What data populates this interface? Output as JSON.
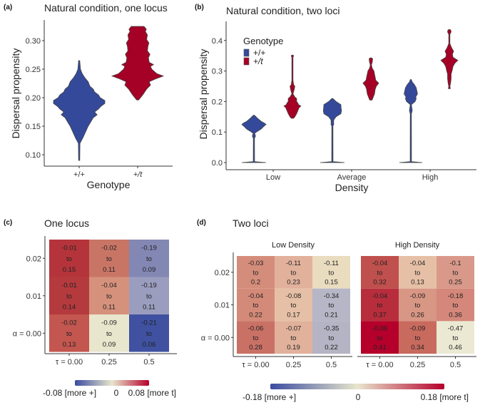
{
  "colors": {
    "wild": "#34499a",
    "t": "#a50026",
    "outline": "#444444",
    "axis": "#333333",
    "cmap_low": "#3b4ca0",
    "cmap_mid": "#e8e6cc",
    "cmap_high": "#b5002b"
  },
  "chart_data": [
    {
      "id": "a",
      "panel_label": "(a)",
      "type": "violin",
      "title": "Natural condition, one locus",
      "xlabel": "Genotype",
      "ylabel": "Dispersal propensity",
      "ylim": [
        0.085,
        0.335
      ],
      "yticks": [
        "0.10",
        "0.15",
        "0.20",
        "0.25",
        "0.30"
      ],
      "ytick_values": [
        0.1,
        0.15,
        0.2,
        0.25,
        0.3
      ],
      "categories": [
        "+/+",
        "+/t"
      ],
      "series": [
        {
          "name": "+/+",
          "color_key": "wild",
          "min": 0.09,
          "max": 0.265,
          "mode": 0.195,
          "profile": [
            [
              0.09,
              0.02
            ],
            [
              0.12,
              0.03
            ],
            [
              0.13,
              0.15
            ],
            [
              0.15,
              0.35
            ],
            [
              0.165,
              0.55
            ],
            [
              0.17,
              0.7
            ],
            [
              0.175,
              0.6
            ],
            [
              0.18,
              0.75
            ],
            [
              0.185,
              0.85
            ],
            [
              0.19,
              1.0
            ],
            [
              0.195,
              1.0
            ],
            [
              0.2,
              0.82
            ],
            [
              0.205,
              0.75
            ],
            [
              0.21,
              0.6
            ],
            [
              0.215,
              0.55
            ],
            [
              0.22,
              0.42
            ],
            [
              0.228,
              0.35
            ],
            [
              0.235,
              0.22
            ],
            [
              0.242,
              0.12
            ],
            [
              0.25,
              0.05
            ],
            [
              0.265,
              0.02
            ]
          ]
        },
        {
          "name": "+/t",
          "color_key": "t",
          "min": 0.196,
          "max": 0.325,
          "mode": 0.238,
          "profile": [
            [
              0.196,
              0.04
            ],
            [
              0.205,
              0.2
            ],
            [
              0.215,
              0.35
            ],
            [
              0.222,
              0.5
            ],
            [
              0.228,
              0.45
            ],
            [
              0.233,
              0.7
            ],
            [
              0.238,
              1.0
            ],
            [
              0.242,
              0.75
            ],
            [
              0.25,
              0.55
            ],
            [
              0.255,
              0.5
            ],
            [
              0.258,
              0.62
            ],
            [
              0.262,
              0.45
            ],
            [
              0.27,
              0.42
            ],
            [
              0.276,
              0.48
            ],
            [
              0.282,
              0.38
            ],
            [
              0.29,
              0.4
            ],
            [
              0.296,
              0.44
            ],
            [
              0.302,
              0.35
            ],
            [
              0.31,
              0.38
            ],
            [
              0.316,
              0.3
            ],
            [
              0.32,
              0.34
            ],
            [
              0.325,
              0.25
            ]
          ]
        }
      ]
    },
    {
      "id": "b",
      "panel_label": "(b)",
      "type": "violin",
      "title": "Natural condition, two loci",
      "xlabel": "Density",
      "ylabel": "Dispersal propensity",
      "ylim": [
        -0.02,
        0.46
      ],
      "yticks": [
        "0.0",
        "0.1",
        "0.2",
        "0.3",
        "0.4"
      ],
      "ytick_values": [
        0.0,
        0.1,
        0.2,
        0.3,
        0.4
      ],
      "categories": [
        "Low",
        "Average",
        "High"
      ],
      "legend": {
        "title": "Genotype",
        "position": "top-left",
        "entries": [
          {
            "label": "+/+",
            "color_key": "wild"
          },
          {
            "label": "+/t",
            "color_key": "t"
          }
        ]
      },
      "series": [
        {
          "name": "+/+",
          "color_key": "wild",
          "groups": [
            {
              "category": "Low",
              "min": 0.0,
              "max": 0.155,
              "mode": 0.125,
              "profile": [
                [
                  0.0,
                  1.0
                ],
                [
                  0.003,
                  0.05
                ],
                [
                  0.08,
                  0.02
                ],
                [
                  0.085,
                  0.12
                ],
                [
                  0.09,
                  0.12
                ],
                [
                  0.095,
                  0.03
                ],
                [
                  0.1,
                  0.2
                ],
                [
                  0.11,
                  0.6
                ],
                [
                  0.118,
                  0.8
                ],
                [
                  0.125,
                  1.0
                ],
                [
                  0.13,
                  0.85
                ],
                [
                  0.135,
                  0.6
                ],
                [
                  0.145,
                  0.3
                ],
                [
                  0.155,
                  0.03
                ]
              ]
            },
            {
              "category": "Average",
              "min": 0.0,
              "max": 0.21,
              "mode": 0.17,
              "profile": [
                [
                  0.0,
                  1.0
                ],
                [
                  0.003,
                  0.05
                ],
                [
                  0.12,
                  0.02
                ],
                [
                  0.125,
                  0.12
                ],
                [
                  0.13,
                  0.1
                ],
                [
                  0.14,
                  0.12
                ],
                [
                  0.15,
                  0.3
                ],
                [
                  0.16,
                  0.7
                ],
                [
                  0.17,
                  0.75
                ],
                [
                  0.18,
                  0.72
                ],
                [
                  0.19,
                  0.7
                ],
                [
                  0.2,
                  0.3
                ],
                [
                  0.21,
                  0.03
                ]
              ]
            },
            {
              "category": "High",
              "min": 0.0,
              "max": 0.272,
              "mode": 0.225,
              "profile": [
                [
                  0.0,
                  0.95
                ],
                [
                  0.003,
                  0.05
                ],
                [
                  0.16,
                  0.02
                ],
                [
                  0.17,
                  0.12
                ],
                [
                  0.18,
                  0.08
                ],
                [
                  0.19,
                  0.02
                ],
                [
                  0.2,
                  0.35
                ],
                [
                  0.21,
                  0.45
                ],
                [
                  0.215,
                  0.4
                ],
                [
                  0.225,
                  0.55
                ],
                [
                  0.235,
                  0.5
                ],
                [
                  0.245,
                  0.45
                ],
                [
                  0.255,
                  0.3
                ],
                [
                  0.265,
                  0.1
                ],
                [
                  0.272,
                  0.02
                ]
              ]
            }
          ]
        },
        {
          "name": "+/t",
          "color_key": "t",
          "groups": [
            {
              "category": "Low",
              "min": 0.145,
              "max": 0.352,
              "mode": 0.185,
              "profile": [
                [
                  0.145,
                  0.1
                ],
                [
                  0.15,
                  0.2
                ],
                [
                  0.16,
                  0.35
                ],
                [
                  0.17,
                  0.45
                ],
                [
                  0.18,
                  0.55
                ],
                [
                  0.185,
                  0.7
                ],
                [
                  0.19,
                  0.5
                ],
                [
                  0.195,
                  0.45
                ],
                [
                  0.2,
                  0.35
                ],
                [
                  0.21,
                  0.35
                ],
                [
                  0.215,
                  0.2
                ],
                [
                  0.225,
                  0.04
                ],
                [
                  0.24,
                  0.15
                ],
                [
                  0.25,
                  0.2
                ],
                [
                  0.255,
                  0.1
                ],
                [
                  0.27,
                  0.02
                ],
                [
                  0.345,
                  0.02
                ],
                [
                  0.35,
                  0.1
                ],
                [
                  0.352,
                  0.04
                ]
              ]
            },
            {
              "category": "Average",
              "min": 0.205,
              "max": 0.343,
              "mode": 0.26,
              "profile": [
                [
                  0.205,
                  0.1
                ],
                [
                  0.215,
                  0.2
                ],
                [
                  0.225,
                  0.3
                ],
                [
                  0.24,
                  0.35
                ],
                [
                  0.25,
                  0.45
                ],
                [
                  0.26,
                  0.65
                ],
                [
                  0.27,
                  0.4
                ],
                [
                  0.28,
                  0.35
                ],
                [
                  0.29,
                  0.3
                ],
                [
                  0.3,
                  0.25
                ],
                [
                  0.31,
                  0.1
                ],
                [
                  0.32,
                  0.03
                ],
                [
                  0.33,
                  0.12
                ],
                [
                  0.34,
                  0.15
                ],
                [
                  0.343,
                  0.05
                ]
              ]
            },
            {
              "category": "High",
              "min": 0.242,
              "max": 0.436,
              "mode": 0.335,
              "profile": [
                [
                  0.242,
                  0.08
                ],
                [
                  0.25,
                  0.02
                ],
                [
                  0.26,
                  0.1
                ],
                [
                  0.275,
                  0.15
                ],
                [
                  0.29,
                  0.15
                ],
                [
                  0.305,
                  0.25
                ],
                [
                  0.315,
                  0.3
                ],
                [
                  0.325,
                  0.45
                ],
                [
                  0.335,
                  0.7
                ],
                [
                  0.345,
                  0.3
                ],
                [
                  0.355,
                  0.25
                ],
                [
                  0.365,
                  0.35
                ],
                [
                  0.375,
                  0.2
                ],
                [
                  0.39,
                  0.03
                ],
                [
                  0.42,
                  0.03
                ],
                [
                  0.428,
                  0.15
                ],
                [
                  0.434,
                  0.12
                ],
                [
                  0.436,
                  0.03
                ]
              ]
            }
          ]
        }
      ]
    },
    {
      "id": "c",
      "panel_label": "(c)",
      "type": "heatmap",
      "title": "One locus",
      "x_ticks": [
        "τ = 0.00",
        "0.25",
        "0.5"
      ],
      "y_ticks": [
        "α = 0.00",
        "0.01",
        "0.02"
      ],
      "connector": "to",
      "rows": [
        {
          "alpha": "0.02",
          "cells": [
            {
              "low": "-0.01",
              "high": "0.15",
              "color": "#b5343b"
            },
            {
              "low": "-0.02",
              "high": "0.11",
              "color": "#c97566"
            },
            {
              "low": "-0.19",
              "high": "0.09",
              "color": "#8387b3"
            }
          ]
        },
        {
          "alpha": "0.01",
          "cells": [
            {
              "low": "-0.01",
              "high": "0.14",
              "color": "#b53a3e"
            },
            {
              "low": "-0.04",
              "high": "0.11",
              "color": "#d6917d"
            },
            {
              "low": "-0.19",
              "high": "0.11",
              "color": "#9b9dbe"
            }
          ]
        },
        {
          "alpha": "0.00",
          "cells": [
            {
              "low": "-0.02",
              "high": "0.13",
              "color": "#c3564f"
            },
            {
              "low": "-0.09",
              "high": "0.09",
              "color": "#e8e6cc"
            },
            {
              "low": "-0.21",
              "high": "0.06",
              "color": "#3f51a0"
            }
          ]
        }
      ],
      "colorbar": {
        "min_label": "-0.08 [more +]",
        "mid_label": "0",
        "max_label": "0.08 [more t]",
        "range": [
          -0.08,
          0.08
        ]
      }
    },
    {
      "id": "d",
      "panel_label": "(d)",
      "type": "heatmap",
      "title": "Two loci",
      "x_ticks": [
        "τ = 0.00",
        "0.25",
        "0.5"
      ],
      "y_ticks": [
        "α = 0.00",
        "0.01",
        "0.02"
      ],
      "connector": "to",
      "facets": [
        {
          "name": "Low Density",
          "rows": [
            {
              "alpha": "0.02",
              "cells": [
                {
                  "low": "-0.03",
                  "high": "0.2",
                  "color": "#d58d7b"
                },
                {
                  "low": "-0.11",
                  "high": "0.23",
                  "color": "#e1b19c"
                },
                {
                  "low": "-0.11",
                  "high": "0.15",
                  "color": "#eadcbf"
                }
              ]
            },
            {
              "alpha": "0.01",
              "cells": [
                {
                  "low": "-0.04",
                  "high": "0.22",
                  "color": "#d48a78"
                },
                {
                  "low": "-0.08",
                  "high": "0.17",
                  "color": "#e6c0a6"
                },
                {
                  "low": "-0.34",
                  "high": "0.21",
                  "color": "#b6b6c6"
                }
              ]
            },
            {
              "alpha": "0.00",
              "cells": [
                {
                  "low": "-0.06",
                  "high": "0.28",
                  "color": "#ca7166"
                },
                {
                  "low": "-0.07",
                  "high": "0.19",
                  "color": "#e1b19b"
                },
                {
                  "low": "-0.35",
                  "high": "0.22",
                  "color": "#b4b4c4"
                }
              ]
            }
          ]
        },
        {
          "name": "High Density",
          "rows": [
            {
              "alpha": "0.02",
              "cells": [
                {
                  "low": "-0.04",
                  "high": "0.32",
                  "color": "#c0504d"
                },
                {
                  "low": "-0.04",
                  "high": "0.13",
                  "color": "#e6c0a6"
                },
                {
                  "low": "-0.1",
                  "high": "0.25",
                  "color": "#d9998a"
                }
              ]
            },
            {
              "alpha": "0.01",
              "cells": [
                {
                  "low": "-0.04",
                  "high": "0.37",
                  "color": "#b82d3c"
                },
                {
                  "low": "-0.09",
                  "high": "0.26",
                  "color": "#d89684"
                },
                {
                  "low": "-0.18",
                  "high": "0.36",
                  "color": "#d4877a"
                }
              ]
            },
            {
              "alpha": "0.00",
              "cells": [
                {
                  "low": "-0.06",
                  "high": "0.41",
                  "color": "#b5002b"
                },
                {
                  "low": "-0.09",
                  "high": "0.34",
                  "color": "#c96a5e"
                },
                {
                  "low": "-0.47",
                  "high": "0.46",
                  "color": "#ebe9d3"
                }
              ]
            }
          ]
        }
      ],
      "colorbar": {
        "min_label": "-0.18 [more +]",
        "mid_label": "0",
        "max_label": "0.18 [more t]",
        "range": [
          -0.18,
          0.18
        ]
      }
    }
  ]
}
